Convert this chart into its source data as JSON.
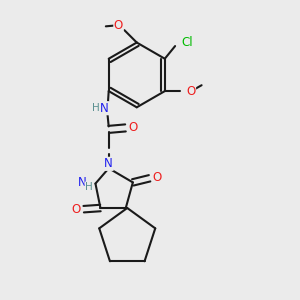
{
  "bg_color": "#ebebeb",
  "bond_color": "#1a1a1a",
  "N_color": "#2020ee",
  "O_color": "#ee2020",
  "Cl_color": "#00bb00",
  "H_color": "#5a9090",
  "font_size": 7.5,
  "line_width": 1.5,
  "xlim": [
    0,
    10
  ],
  "ylim": [
    0,
    10
  ]
}
